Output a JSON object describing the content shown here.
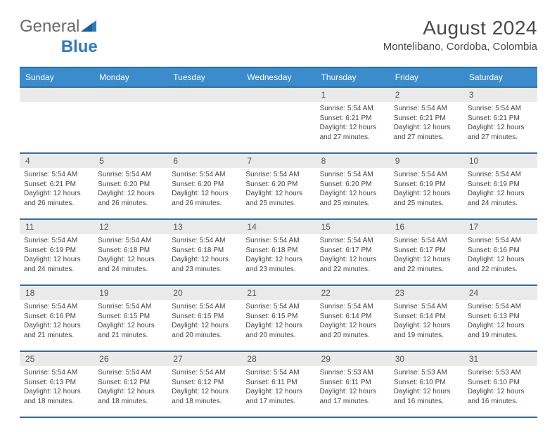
{
  "logo": {
    "text1": "General",
    "text2": "Blue"
  },
  "header": {
    "title": "August 2024",
    "location": "Montelibano, Cordoba, Colombia"
  },
  "colors": {
    "header_bg": "#3a8ccc",
    "border": "#2f6fa3",
    "date_row_bg": "#eaeaea",
    "text": "#444444",
    "title": "#4a4a4a"
  },
  "weekdays": [
    "Sunday",
    "Monday",
    "Tuesday",
    "Wednesday",
    "Thursday",
    "Friday",
    "Saturday"
  ],
  "weeks": [
    [
      {
        "n": "",
        "sr": "",
        "ss": "",
        "dl": ""
      },
      {
        "n": "",
        "sr": "",
        "ss": "",
        "dl": ""
      },
      {
        "n": "",
        "sr": "",
        "ss": "",
        "dl": ""
      },
      {
        "n": "",
        "sr": "",
        "ss": "",
        "dl": ""
      },
      {
        "n": "1",
        "sr": "Sunrise: 5:54 AM",
        "ss": "Sunset: 6:21 PM",
        "dl": "Daylight: 12 hours and 27 minutes."
      },
      {
        "n": "2",
        "sr": "Sunrise: 5:54 AM",
        "ss": "Sunset: 6:21 PM",
        "dl": "Daylight: 12 hours and 27 minutes."
      },
      {
        "n": "3",
        "sr": "Sunrise: 5:54 AM",
        "ss": "Sunset: 6:21 PM",
        "dl": "Daylight: 12 hours and 27 minutes."
      }
    ],
    [
      {
        "n": "4",
        "sr": "Sunrise: 5:54 AM",
        "ss": "Sunset: 6:21 PM",
        "dl": "Daylight: 12 hours and 26 minutes."
      },
      {
        "n": "5",
        "sr": "Sunrise: 5:54 AM",
        "ss": "Sunset: 6:20 PM",
        "dl": "Daylight: 12 hours and 26 minutes."
      },
      {
        "n": "6",
        "sr": "Sunrise: 5:54 AM",
        "ss": "Sunset: 6:20 PM",
        "dl": "Daylight: 12 hours and 26 minutes."
      },
      {
        "n": "7",
        "sr": "Sunrise: 5:54 AM",
        "ss": "Sunset: 6:20 PM",
        "dl": "Daylight: 12 hours and 25 minutes."
      },
      {
        "n": "8",
        "sr": "Sunrise: 5:54 AM",
        "ss": "Sunset: 6:20 PM",
        "dl": "Daylight: 12 hours and 25 minutes."
      },
      {
        "n": "9",
        "sr": "Sunrise: 5:54 AM",
        "ss": "Sunset: 6:19 PM",
        "dl": "Daylight: 12 hours and 25 minutes."
      },
      {
        "n": "10",
        "sr": "Sunrise: 5:54 AM",
        "ss": "Sunset: 6:19 PM",
        "dl": "Daylight: 12 hours and 24 minutes."
      }
    ],
    [
      {
        "n": "11",
        "sr": "Sunrise: 5:54 AM",
        "ss": "Sunset: 6:19 PM",
        "dl": "Daylight: 12 hours and 24 minutes."
      },
      {
        "n": "12",
        "sr": "Sunrise: 5:54 AM",
        "ss": "Sunset: 6:18 PM",
        "dl": "Daylight: 12 hours and 24 minutes."
      },
      {
        "n": "13",
        "sr": "Sunrise: 5:54 AM",
        "ss": "Sunset: 6:18 PM",
        "dl": "Daylight: 12 hours and 23 minutes."
      },
      {
        "n": "14",
        "sr": "Sunrise: 5:54 AM",
        "ss": "Sunset: 6:18 PM",
        "dl": "Daylight: 12 hours and 23 minutes."
      },
      {
        "n": "15",
        "sr": "Sunrise: 5:54 AM",
        "ss": "Sunset: 6:17 PM",
        "dl": "Daylight: 12 hours and 22 minutes."
      },
      {
        "n": "16",
        "sr": "Sunrise: 5:54 AM",
        "ss": "Sunset: 6:17 PM",
        "dl": "Daylight: 12 hours and 22 minutes."
      },
      {
        "n": "17",
        "sr": "Sunrise: 5:54 AM",
        "ss": "Sunset: 6:16 PM",
        "dl": "Daylight: 12 hours and 22 minutes."
      }
    ],
    [
      {
        "n": "18",
        "sr": "Sunrise: 5:54 AM",
        "ss": "Sunset: 6:16 PM",
        "dl": "Daylight: 12 hours and 21 minutes."
      },
      {
        "n": "19",
        "sr": "Sunrise: 5:54 AM",
        "ss": "Sunset: 6:15 PM",
        "dl": "Daylight: 12 hours and 21 minutes."
      },
      {
        "n": "20",
        "sr": "Sunrise: 5:54 AM",
        "ss": "Sunset: 6:15 PM",
        "dl": "Daylight: 12 hours and 20 minutes."
      },
      {
        "n": "21",
        "sr": "Sunrise: 5:54 AM",
        "ss": "Sunset: 6:15 PM",
        "dl": "Daylight: 12 hours and 20 minutes."
      },
      {
        "n": "22",
        "sr": "Sunrise: 5:54 AM",
        "ss": "Sunset: 6:14 PM",
        "dl": "Daylight: 12 hours and 20 minutes."
      },
      {
        "n": "23",
        "sr": "Sunrise: 5:54 AM",
        "ss": "Sunset: 6:14 PM",
        "dl": "Daylight: 12 hours and 19 minutes."
      },
      {
        "n": "24",
        "sr": "Sunrise: 5:54 AM",
        "ss": "Sunset: 6:13 PM",
        "dl": "Daylight: 12 hours and 19 minutes."
      }
    ],
    [
      {
        "n": "25",
        "sr": "Sunrise: 5:54 AM",
        "ss": "Sunset: 6:13 PM",
        "dl": "Daylight: 12 hours and 18 minutes."
      },
      {
        "n": "26",
        "sr": "Sunrise: 5:54 AM",
        "ss": "Sunset: 6:12 PM",
        "dl": "Daylight: 12 hours and 18 minutes."
      },
      {
        "n": "27",
        "sr": "Sunrise: 5:54 AM",
        "ss": "Sunset: 6:12 PM",
        "dl": "Daylight: 12 hours and 18 minutes."
      },
      {
        "n": "28",
        "sr": "Sunrise: 5:54 AM",
        "ss": "Sunset: 6:11 PM",
        "dl": "Daylight: 12 hours and 17 minutes."
      },
      {
        "n": "29",
        "sr": "Sunrise: 5:53 AM",
        "ss": "Sunset: 6:11 PM",
        "dl": "Daylight: 12 hours and 17 minutes."
      },
      {
        "n": "30",
        "sr": "Sunrise: 5:53 AM",
        "ss": "Sunset: 6:10 PM",
        "dl": "Daylight: 12 hours and 16 minutes."
      },
      {
        "n": "31",
        "sr": "Sunrise: 5:53 AM",
        "ss": "Sunset: 6:10 PM",
        "dl": "Daylight: 12 hours and 16 minutes."
      }
    ]
  ]
}
